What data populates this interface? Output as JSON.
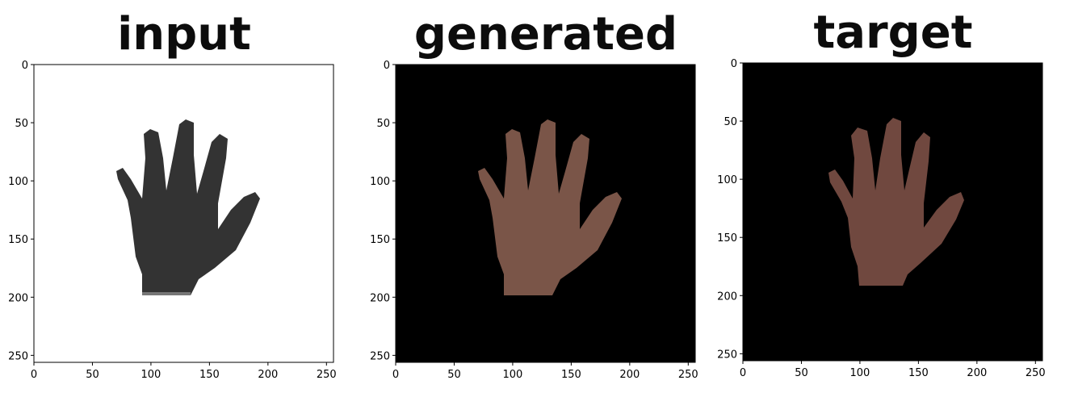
{
  "panels": [
    {
      "title": "input",
      "background": "#ffffff",
      "hand_fill": "#333333",
      "wrist_fill": "#777777"
    },
    {
      "title": "generated",
      "background": "#000000",
      "hand_fill": "#7a5548",
      "wrist_fill": "#6a4a3e"
    },
    {
      "title": "target",
      "background": "#000000",
      "hand_fill": "#70483f",
      "wrist_fill": "#6a453a"
    }
  ],
  "axis": {
    "x_ticks": [
      "0",
      "50",
      "100",
      "150",
      "200",
      "250"
    ],
    "y_ticks": [
      "0",
      "50",
      "100",
      "150",
      "200",
      "250"
    ],
    "range": [
      0,
      256
    ]
  }
}
